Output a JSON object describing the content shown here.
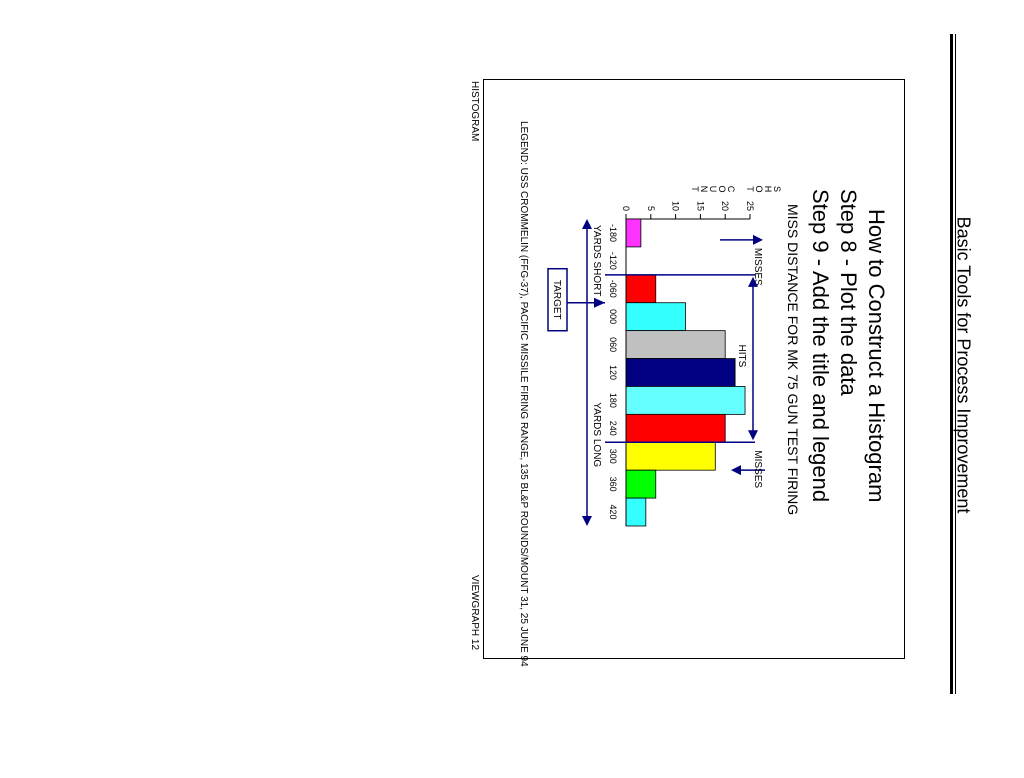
{
  "header": {
    "title": "Basic Tools for Process Improvement"
  },
  "slide": {
    "title": "How to Construct a Histogram",
    "step8": "Step 8 - Plot the data",
    "step9": "Step 9 - Add the title and legend",
    "legend": "LEGEND:   USS CROMMELIN  (FFG-37), PACIFIC MISSILE FIRING RANGE, 135  BL&P ROUNDS/MOUNT 31, 25 JUNE 94",
    "footer_left": "HISTOGRAM",
    "footer_right": "VIEWGRAPH 12"
  },
  "chart_data": {
    "type": "bar",
    "title": "MISS DISTANCE FOR MK 75 GUN TEST FIRING",
    "ylabel": "SHOT COUNT",
    "ylim": [
      0,
      25
    ],
    "yticks": [
      0,
      5,
      10,
      15,
      20,
      25
    ],
    "categories": [
      "-180",
      "-120",
      "-060",
      "000",
      "060",
      "120",
      "180",
      "240",
      "300",
      "360",
      "420"
    ],
    "values": [
      3,
      0,
      6,
      12,
      20,
      22,
      24,
      20,
      18,
      6,
      4
    ],
    "colors": [
      "#ff33ff",
      "#ffffff",
      "#ff0000",
      "#33ffff",
      "#c0c0c0",
      "#000080",
      "#66ffff",
      "#ff0000",
      "#ffff00",
      "#00ff00",
      "#33ffff"
    ],
    "annotations": {
      "misses_left": "MISSES",
      "hits": "HITS",
      "misses_right": "MISSES",
      "yards_short": "YARDS SHORT",
      "yards_long": "YARDS LONG",
      "target": "TARGET"
    },
    "accent_color": "#000080"
  }
}
